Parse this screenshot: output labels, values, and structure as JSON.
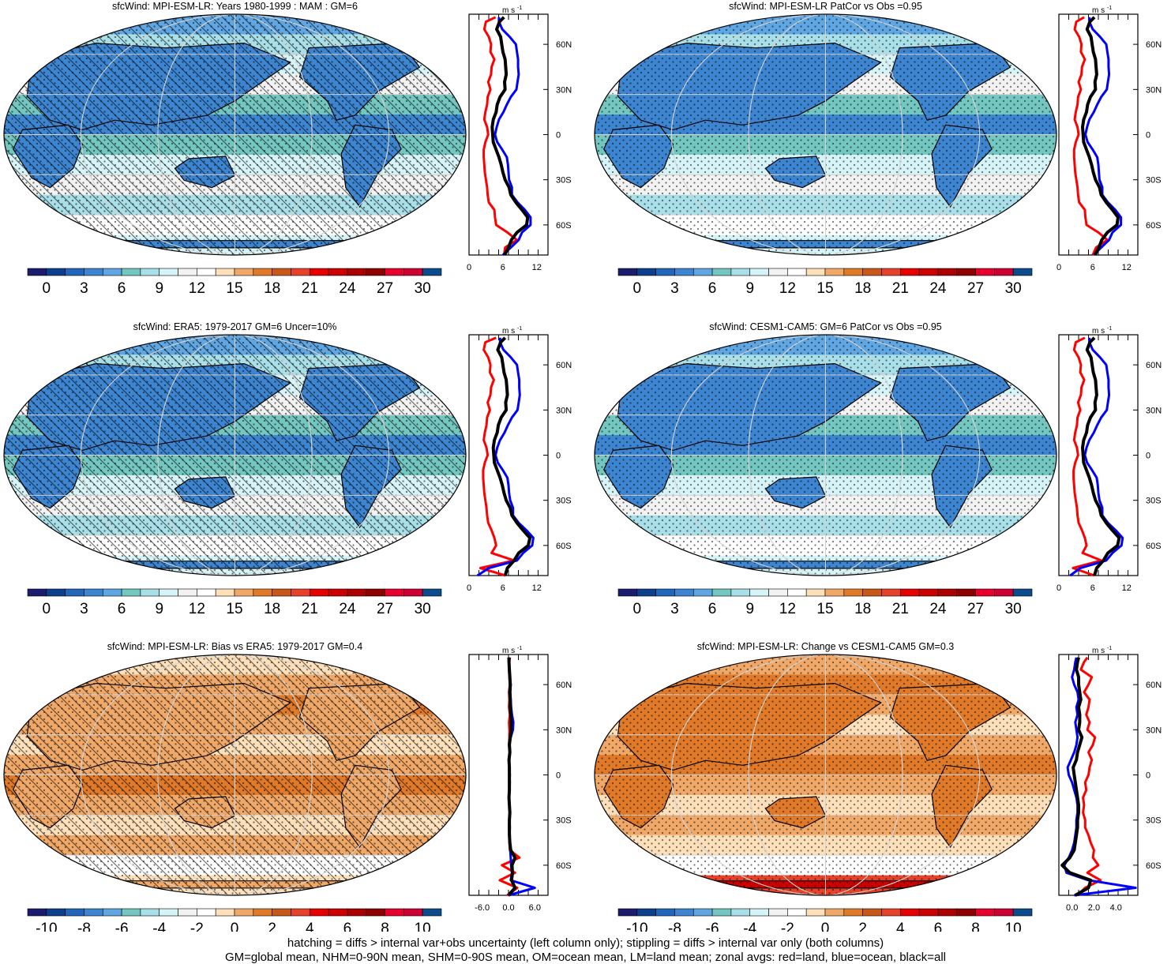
{
  "colors": {
    "abs_scale": [
      "#1c1c6e",
      "#0c3f8c",
      "#2266bb",
      "#3d85d0",
      "#5fa6e2",
      "#74c7c0",
      "#a8dfe8",
      "#d6f4f7",
      "#f2f2f2",
      "#ffffff",
      "#fde0ba",
      "#f0a868",
      "#e07a28",
      "#c8571a",
      "#e8412a",
      "#e60000",
      "#cc0000",
      "#aa0000",
      "#8c0000",
      "#e6002e",
      "#cc0033",
      "#0c4b8c"
    ],
    "diff_scale": [
      "#1c1c6e",
      "#0c3f8c",
      "#2266bb",
      "#3d85d0",
      "#5fa6e2",
      "#74c7c0",
      "#a8dfe8",
      "#d6f4f7",
      "#f2f2f2",
      "#ffffff",
      "#fde0ba",
      "#f0a868",
      "#e07a28",
      "#c8571a",
      "#e8412a",
      "#e60000",
      "#cc0000",
      "#aa0000",
      "#8c0000",
      "#e6002e",
      "#cc0033",
      "#0c4b8c"
    ],
    "land": "#ff0000",
    "ocean": "#0000ff",
    "all": "#000000",
    "grid": "#d3d3d3"
  },
  "chart_data": [
    {
      "type": "heatmap",
      "title": "sfcWind: MPI-ESM-LR: Years 1980-1999 : MAM : GM=6",
      "colorbar_ticks": [
        "0",
        "3",
        "6",
        "9",
        "12",
        "15",
        "18",
        "21",
        "24",
        "27",
        "30"
      ],
      "map_style": "abs",
      "hatched": true,
      "zonal": {
        "title": "m s",
        "title_sup": "-1",
        "x_ticks": [
          "0",
          "6",
          "12"
        ],
        "xlim": [
          0,
          14
        ],
        "y_ticks": [
          "60N",
          "30N",
          "0",
          "30S",
          "60S"
        ],
        "ylim": [
          -80,
          80
        ],
        "lat": [
          -80,
          -75,
          -70,
          -65,
          -60,
          -55,
          -50,
          -45,
          -40,
          -35,
          -30,
          -25,
          -20,
          -15,
          -10,
          -5,
          0,
          5,
          10,
          15,
          20,
          25,
          30,
          35,
          40,
          45,
          50,
          55,
          60,
          65,
          70,
          75,
          78
        ],
        "land": [
          6.2,
          6.4,
          8.5,
          6.8,
          4.8,
          4.6,
          4.5,
          3.5,
          3.3,
          3.2,
          3.0,
          2.8,
          2.7,
          2.6,
          2.6,
          2.9,
          3.4,
          3.2,
          2.7,
          2.9,
          3.2,
          3.3,
          3.8,
          3.4,
          3.9,
          4.0,
          4.5,
          3.8,
          3.9,
          3.5,
          2.7,
          3.0,
          4.7
        ],
        "ocean": [
          6.0,
          7.4,
          8.8,
          9.4,
          10.9,
          10.9,
          9.9,
          8.6,
          7.6,
          7.6,
          7.1,
          7.0,
          6.9,
          6.7,
          5.9,
          5.0,
          4.6,
          4.9,
          5.3,
          6.1,
          6.7,
          7.4,
          8.4,
          8.6,
          8.8,
          8.7,
          8.7,
          8.5,
          8.3,
          7.2,
          5.9,
          5.3,
          5.3
        ],
        "all": [
          6.3,
          7.0,
          7.5,
          8.5,
          10.2,
          10.4,
          9.4,
          8.3,
          7.4,
          7.1,
          6.4,
          6.0,
          5.7,
          5.3,
          4.8,
          4.3,
          4.2,
          4.1,
          4.3,
          4.8,
          5.0,
          5.5,
          6.4,
          6.3,
          6.6,
          6.5,
          6.4,
          6.0,
          5.8,
          5.6,
          4.9,
          5.4,
          6.2
        ]
      }
    },
    {
      "type": "heatmap",
      "title": "sfcWind: MPI-ESM-LR PatCor vs Obs =0.95",
      "colorbar_ticks": [
        "0",
        "3",
        "6",
        "9",
        "12",
        "15",
        "18",
        "21",
        "24",
        "27",
        "30"
      ],
      "map_style": "abs",
      "hatched": false,
      "zonal": {
        "title": "m s",
        "title_sup": "-1",
        "x_ticks": [
          "0",
          "6",
          "12"
        ],
        "xlim": [
          0,
          14
        ],
        "y_ticks": [
          "60N",
          "30N",
          "0",
          "30S",
          "60S"
        ],
        "ylim": [
          -80,
          80
        ],
        "lat": [
          -80,
          -75,
          -70,
          -65,
          -60,
          -55,
          -50,
          -45,
          -40,
          -35,
          -30,
          -25,
          -20,
          -15,
          -10,
          -5,
          0,
          5,
          10,
          15,
          20,
          25,
          30,
          35,
          40,
          45,
          50,
          55,
          60,
          65,
          70,
          75,
          78
        ],
        "land": [
          6.0,
          6.6,
          8.6,
          7.0,
          4.9,
          4.7,
          4.6,
          3.6,
          3.4,
          3.3,
          3.1,
          2.9,
          2.8,
          2.7,
          2.7,
          3.0,
          3.5,
          3.3,
          2.8,
          3.0,
          3.3,
          3.4,
          3.9,
          3.5,
          4.0,
          4.1,
          4.6,
          3.9,
          4.0,
          3.6,
          2.8,
          3.1,
          4.5
        ],
        "ocean": [
          6.2,
          7.5,
          8.9,
          9.5,
          11.0,
          11.0,
          10.0,
          8.7,
          7.7,
          7.7,
          7.2,
          7.1,
          7.0,
          6.8,
          6.0,
          5.1,
          4.7,
          5.0,
          5.4,
          6.2,
          6.8,
          7.5,
          8.5,
          8.7,
          8.9,
          8.8,
          8.8,
          8.6,
          8.4,
          7.3,
          6.0,
          5.4,
          5.4
        ],
        "all": [
          6.4,
          7.1,
          7.6,
          8.6,
          10.3,
          10.5,
          9.5,
          8.4,
          7.5,
          7.2,
          6.5,
          6.1,
          5.8,
          5.4,
          4.9,
          4.4,
          4.3,
          4.2,
          4.4,
          4.9,
          5.1,
          5.6,
          6.5,
          6.4,
          6.7,
          6.6,
          6.5,
          6.1,
          5.9,
          5.7,
          5.0,
          5.5,
          6.3
        ]
      }
    },
    {
      "type": "heatmap",
      "title": "sfcWind: ERA5: 1979-2017 GM=6 Uncer=10%",
      "colorbar_ticks": [
        "0",
        "3",
        "6",
        "9",
        "12",
        "15",
        "18",
        "21",
        "24",
        "27",
        "30"
      ],
      "map_style": "abs",
      "hatched": true,
      "zonal": {
        "title": "m s",
        "title_sup": "-1",
        "x_ticks": [
          "0",
          "6",
          "12"
        ],
        "xlim": [
          0,
          14
        ],
        "y_ticks": [
          "60N",
          "30N",
          "0",
          "30S",
          "60S"
        ],
        "ylim": [
          -80,
          80
        ],
        "lat": [
          -80,
          -75,
          -70,
          -65,
          -60,
          -55,
          -50,
          -45,
          -40,
          -35,
          -30,
          -25,
          -20,
          -15,
          -10,
          -5,
          0,
          5,
          10,
          15,
          20,
          25,
          30,
          35,
          40,
          45,
          50,
          55,
          60,
          65,
          70,
          75,
          78
        ],
        "land": [
          6.5,
          2.0,
          8.0,
          4.0,
          4.8,
          4.5,
          4.0,
          3.4,
          3.2,
          3.1,
          2.9,
          2.7,
          2.6,
          2.5,
          2.5,
          2.8,
          3.3,
          3.1,
          2.6,
          2.8,
          3.1,
          3.2,
          3.7,
          3.3,
          3.8,
          3.9,
          4.4,
          3.7,
          3.8,
          3.4,
          2.6,
          2.9,
          4.8
        ],
        "ocean": [
          1.5,
          3.5,
          8.5,
          9.6,
          11.2,
          11.4,
          10.2,
          8.8,
          7.8,
          7.8,
          7.3,
          7.1,
          7.0,
          6.8,
          6.0,
          5.1,
          4.7,
          5.0,
          5.5,
          6.3,
          6.9,
          7.6,
          8.6,
          8.8,
          9.0,
          8.9,
          8.9,
          8.7,
          8.5,
          7.4,
          6.1,
          5.5,
          5.5
        ],
        "all": [
          6.4,
          6.8,
          8.0,
          8.8,
          10.5,
          10.8,
          9.6,
          8.5,
          7.6,
          7.3,
          6.6,
          6.2,
          5.9,
          5.5,
          5.0,
          4.5,
          4.4,
          4.3,
          4.5,
          5.0,
          5.2,
          5.7,
          6.6,
          6.5,
          6.8,
          6.7,
          6.6,
          6.2,
          6.0,
          5.8,
          5.1,
          5.6,
          6.4
        ]
      }
    },
    {
      "type": "heatmap",
      "title": "sfcWind: CESM1-CAM5: GM=6 PatCor vs Obs =0.95",
      "colorbar_ticks": [
        "0",
        "3",
        "6",
        "9",
        "12",
        "15",
        "18",
        "21",
        "24",
        "27",
        "30"
      ],
      "map_style": "abs",
      "hatched": false,
      "zonal": {
        "title": "m s",
        "title_sup": "-1",
        "x_ticks": [
          "0",
          "6",
          "12"
        ],
        "xlim": [
          0,
          14
        ],
        "y_ticks": [
          "60N",
          "30N",
          "0",
          "30S",
          "60S"
        ],
        "ylim": [
          -80,
          80
        ],
        "lat": [
          -80,
          -75,
          -70,
          -65,
          -60,
          -55,
          -50,
          -45,
          -40,
          -35,
          -30,
          -25,
          -20,
          -15,
          -10,
          -5,
          0,
          5,
          10,
          15,
          20,
          25,
          30,
          35,
          40,
          45,
          50,
          55,
          60,
          65,
          70,
          75,
          78
        ],
        "land": [
          6.3,
          2.5,
          7.5,
          4.2,
          4.9,
          4.6,
          4.1,
          3.5,
          3.3,
          3.2,
          3.0,
          2.8,
          2.7,
          2.6,
          2.6,
          2.9,
          3.4,
          3.2,
          2.7,
          2.9,
          3.2,
          3.3,
          3.8,
          3.4,
          3.9,
          4.0,
          4.5,
          3.8,
          3.9,
          3.5,
          2.7,
          3.0,
          4.6
        ],
        "ocean": [
          2.0,
          3.8,
          8.4,
          9.5,
          11.1,
          11.3,
          10.1,
          8.7,
          7.7,
          7.7,
          7.2,
          7.0,
          6.9,
          6.7,
          5.9,
          5.0,
          4.6,
          4.9,
          5.4,
          6.2,
          6.8,
          7.5,
          8.5,
          8.7,
          8.9,
          8.8,
          8.8,
          8.6,
          8.4,
          7.3,
          6.0,
          5.4,
          5.4
        ],
        "all": [
          6.3,
          6.7,
          7.9,
          8.7,
          10.4,
          10.7,
          9.5,
          8.4,
          7.5,
          7.2,
          6.5,
          6.1,
          5.8,
          5.4,
          4.9,
          4.4,
          4.3,
          4.2,
          4.4,
          4.9,
          5.1,
          5.6,
          6.5,
          6.4,
          6.7,
          6.6,
          6.5,
          6.1,
          5.9,
          5.7,
          5.0,
          5.5,
          6.3
        ]
      }
    },
    {
      "type": "heatmap",
      "title": "sfcWind: MPI-ESM-LR: Bias vs ERA5: 1979-2017 GM=0.4",
      "colorbar_ticks": [
        "-10",
        "-8",
        "-6",
        "-4",
        "-2",
        "0",
        "2",
        "4",
        "6",
        "8",
        "10"
      ],
      "map_style": "bias",
      "hatched": true,
      "zonal": {
        "title": "m s",
        "title_sup": "-1",
        "x_ticks": [
          "-6.0",
          "0.0",
          "6.0"
        ],
        "xlim": [
          -9,
          9
        ],
        "y_ticks": [
          "60N",
          "30N",
          "0",
          "30S",
          "60S"
        ],
        "ylim": [
          -80,
          80
        ],
        "lat": [
          -80,
          -75,
          -70,
          -65,
          -60,
          -55,
          -50,
          -45,
          -40,
          -35,
          -30,
          -25,
          -20,
          -15,
          -10,
          -5,
          0,
          5,
          10,
          15,
          20,
          25,
          30,
          35,
          40,
          45,
          50,
          55,
          60,
          65,
          70,
          75,
          78
        ],
        "land": [
          -0.3,
          2.0,
          -2.0,
          1.5,
          -1.5,
          2.5,
          0.3,
          0.2,
          0.3,
          0.1,
          0.2,
          0.3,
          0.2,
          0.1,
          0.2,
          0.3,
          0.2,
          0.1,
          0.2,
          0.3,
          0.1,
          0.2,
          0.2,
          0.1,
          0.3,
          0.1,
          0.2,
          0.1,
          0.3,
          0.2,
          0.1,
          0.2,
          0.3
        ],
        "ocean": [
          0.0,
          6.0,
          0.5,
          0.8,
          0.6,
          0.5,
          0.4,
          0.3,
          0.2,
          0.3,
          0.2,
          0.3,
          0.2,
          0.1,
          0.2,
          0.2,
          0.3,
          0.2,
          0.1,
          0.3,
          0.2,
          0.5,
          1.0,
          1.1,
          0.8,
          0.6,
          0.5,
          0.4,
          0.5,
          0.3,
          0.2,
          0.1,
          0.0
        ],
        "all": [
          0.0,
          1.5,
          0.7,
          0.9,
          0.8,
          1.5,
          0.5,
          0.3,
          0.2,
          0.2,
          0.2,
          0.3,
          0.2,
          0.1,
          0.2,
          0.2,
          0.2,
          0.2,
          0.1,
          0.3,
          0.2,
          0.4,
          0.6,
          0.6,
          0.5,
          0.4,
          0.4,
          0.3,
          0.4,
          0.3,
          0.2,
          0.1,
          0.1
        ]
      }
    },
    {
      "type": "heatmap",
      "title": "sfcWind: MPI-ESM-LR: Change vs CESM1-CAM5 GM=0.3",
      "colorbar_ticks": [
        "-10",
        "-8",
        "-6",
        "-4",
        "-2",
        "0",
        "2",
        "4",
        "6",
        "8",
        "10"
      ],
      "map_style": "change",
      "hatched": false,
      "zonal": {
        "title": "m s",
        "title_sup": "-1",
        "x_ticks": [
          "0.0",
          "2.0",
          "4.0"
        ],
        "xlim": [
          -1.2,
          6
        ],
        "y_ticks": [
          "60N",
          "30N",
          "0",
          "30S",
          "60S"
        ],
        "ylim": [
          -80,
          80
        ],
        "lat": [
          -80,
          -75,
          -70,
          -65,
          -60,
          -55,
          -50,
          -45,
          -40,
          -35,
          -30,
          -25,
          -20,
          -15,
          -10,
          -5,
          0,
          5,
          10,
          15,
          20,
          25,
          30,
          35,
          40,
          45,
          50,
          55,
          60,
          65,
          70,
          75,
          78
        ],
        "land": [
          0.5,
          1.2,
          2.6,
          1.4,
          2.4,
          1.9,
          2.0,
          1.7,
          1.5,
          1.2,
          1.2,
          1.0,
          1.1,
          1.0,
          1.3,
          1.2,
          1.5,
          1.6,
          1.8,
          1.5,
          1.9,
          2.1,
          1.4,
          1.6,
          1.3,
          1.5,
          1.6,
          1.1,
          1.5,
          1.8,
          0.8,
          1.1,
          1.4
        ],
        "ocean": [
          0.2,
          5.8,
          1.5,
          -0.5,
          -0.7,
          -0.3,
          0.0,
          0.2,
          0.3,
          0.4,
          0.4,
          0.5,
          0.5,
          0.4,
          0.2,
          0.0,
          -0.3,
          -0.4,
          -0.1,
          0.2,
          0.4,
          0.5,
          0.4,
          0.3,
          0.5,
          0.4,
          0.6,
          0.5,
          0.2,
          0.0,
          0.2,
          0.3,
          0.4
        ],
        "all": [
          0.3,
          1.5,
          1.7,
          -0.2,
          -0.9,
          -0.2,
          0.2,
          0.3,
          0.4,
          0.5,
          0.5,
          0.6,
          0.6,
          0.5,
          0.4,
          0.3,
          0.2,
          0.1,
          0.4,
          0.5,
          0.7,
          0.9,
          0.6,
          0.7,
          0.7,
          0.6,
          0.8,
          0.7,
          0.6,
          0.6,
          0.4,
          0.5,
          0.6
        ]
      }
    }
  ],
  "footer": {
    "line1": "hatching = diffs > internal var+obs uncertainty (left column only); stippling = diffs > internal var only (both columns)",
    "line2": "GM=global mean, NHM=0-90N mean, SHM=0-90S mean, OM=ocean mean, LM=land mean; zonal avgs: red=land, blue=ocean, black=all"
  }
}
